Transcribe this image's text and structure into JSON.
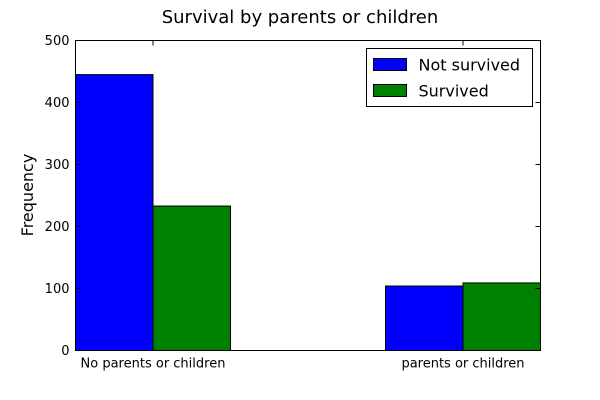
{
  "chart_data": {
    "type": "bar",
    "title": "Survival by parents or children",
    "xlabel": "",
    "ylabel": "Frequency",
    "categories": [
      "No parents or children",
      "parents or children"
    ],
    "series": [
      {
        "name": "Not survived",
        "values": [
          445,
          104
        ],
        "color": "#0000ff"
      },
      {
        "name": "Survived",
        "values": [
          233,
          109
        ],
        "color": "#008000"
      }
    ],
    "ylim": [
      0,
      500
    ],
    "yticks": [
      0,
      100,
      200,
      300,
      400,
      500
    ],
    "grid": false,
    "legend_position": "top-right"
  }
}
